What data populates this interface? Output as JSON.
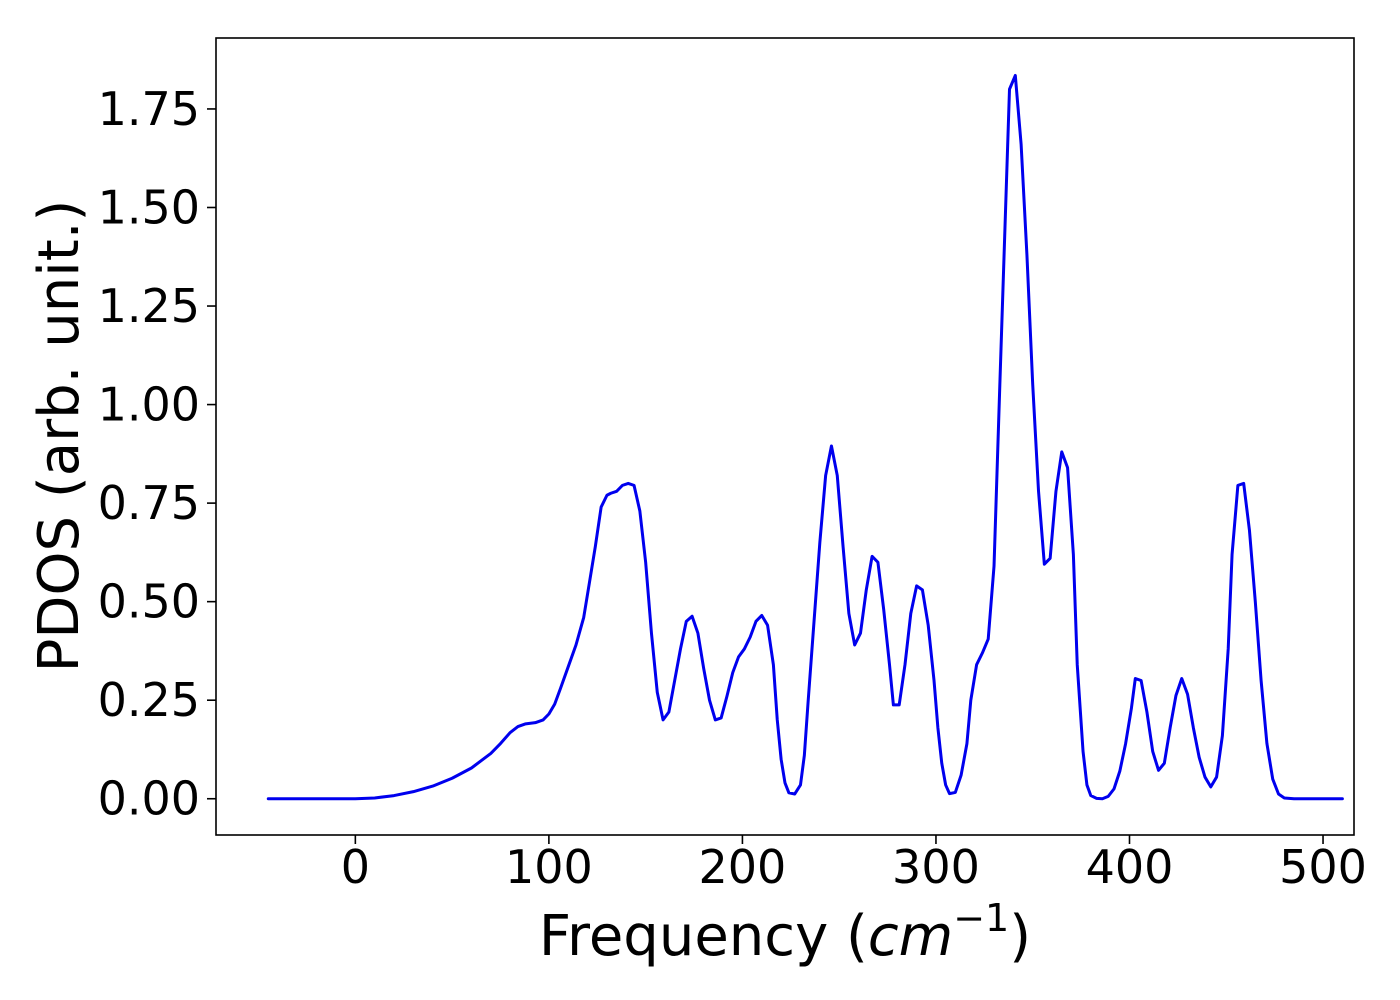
{
  "chart_data": {
    "type": "line",
    "title": "",
    "xlabel": "Frequency (",
    "xlabel_math": "cm",
    "xlabel_sup": "−1",
    "xlabel_close": ")",
    "ylabel": "PDOS (arb. unit.)",
    "xlim": [
      -72,
      516
    ],
    "ylim": [
      -0.092,
      1.93
    ],
    "grid": false,
    "legend": "none",
    "xticks": [
      0,
      100,
      200,
      300,
      400,
      500
    ],
    "xtick_labels": [
      "0",
      "100",
      "200",
      "300",
      "400",
      "500"
    ],
    "yticks": [
      0,
      0.25,
      0.5,
      0.75,
      1.0,
      1.25,
      1.5,
      1.75
    ],
    "ytick_labels": [
      "0.00",
      "0.25",
      "0.50",
      "0.75",
      "1.00",
      "1.25",
      "1.50",
      "1.75"
    ],
    "series": [
      {
        "color": "#0000ee",
        "points": [
          [
            -45,
            0.0
          ],
          [
            0,
            0.0
          ],
          [
            10,
            0.002
          ],
          [
            20,
            0.008
          ],
          [
            30,
            0.018
          ],
          [
            40,
            0.032
          ],
          [
            50,
            0.052
          ],
          [
            60,
            0.078
          ],
          [
            70,
            0.115
          ],
          [
            75,
            0.14
          ],
          [
            80,
            0.168
          ],
          [
            84,
            0.183
          ],
          [
            88,
            0.19
          ],
          [
            93,
            0.193
          ],
          [
            97,
            0.2
          ],
          [
            100,
            0.215
          ],
          [
            103,
            0.24
          ],
          [
            106,
            0.28
          ],
          [
            110,
            0.335
          ],
          [
            114,
            0.39
          ],
          [
            118,
            0.46
          ],
          [
            121,
            0.55
          ],
          [
            124,
            0.64
          ],
          [
            127,
            0.74
          ],
          [
            130,
            0.77
          ],
          [
            132,
            0.775
          ],
          [
            135,
            0.78
          ],
          [
            138,
            0.795
          ],
          [
            141,
            0.8
          ],
          [
            144,
            0.795
          ],
          [
            147,
            0.73
          ],
          [
            150,
            0.6
          ],
          [
            153,
            0.42
          ],
          [
            156,
            0.27
          ],
          [
            159,
            0.2
          ],
          [
            162,
            0.22
          ],
          [
            165,
            0.3
          ],
          [
            168,
            0.38
          ],
          [
            171,
            0.45
          ],
          [
            174,
            0.463
          ],
          [
            177,
            0.42
          ],
          [
            180,
            0.33
          ],
          [
            183,
            0.25
          ],
          [
            186,
            0.2
          ],
          [
            189,
            0.205
          ],
          [
            192,
            0.26
          ],
          [
            195,
            0.32
          ],
          [
            198,
            0.36
          ],
          [
            201,
            0.38
          ],
          [
            204,
            0.41
          ],
          [
            207,
            0.45
          ],
          [
            210,
            0.465
          ],
          [
            213,
            0.44
          ],
          [
            216,
            0.34
          ],
          [
            218,
            0.2
          ],
          [
            220,
            0.1
          ],
          [
            222,
            0.04
          ],
          [
            224,
            0.015
          ],
          [
            227,
            0.012
          ],
          [
            230,
            0.035
          ],
          [
            232,
            0.11
          ],
          [
            234,
            0.25
          ],
          [
            237,
            0.45
          ],
          [
            240,
            0.65
          ],
          [
            243,
            0.82
          ],
          [
            246,
            0.895
          ],
          [
            249,
            0.82
          ],
          [
            252,
            0.64
          ],
          [
            255,
            0.47
          ],
          [
            258,
            0.39
          ],
          [
            261,
            0.42
          ],
          [
            264,
            0.53
          ],
          [
            267,
            0.615
          ],
          [
            270,
            0.6
          ],
          [
            273,
            0.48
          ],
          [
            276,
            0.34
          ],
          [
            278,
            0.238
          ],
          [
            281,
            0.238
          ],
          [
            284,
            0.34
          ],
          [
            287,
            0.47
          ],
          [
            290,
            0.54
          ],
          [
            293,
            0.53
          ],
          [
            296,
            0.44
          ],
          [
            299,
            0.3
          ],
          [
            301,
            0.18
          ],
          [
            303,
            0.09
          ],
          [
            305,
            0.035
          ],
          [
            307,
            0.013
          ],
          [
            310,
            0.016
          ],
          [
            313,
            0.06
          ],
          [
            316,
            0.14
          ],
          [
            318,
            0.25
          ],
          [
            321,
            0.34
          ],
          [
            324,
            0.37
          ],
          [
            327,
            0.405
          ],
          [
            330,
            0.59
          ],
          [
            333,
            1.05
          ],
          [
            336,
            1.5
          ],
          [
            338,
            1.8
          ],
          [
            341,
            1.835
          ],
          [
            344,
            1.66
          ],
          [
            347,
            1.38
          ],
          [
            350,
            1.05
          ],
          [
            353,
            0.78
          ],
          [
            356,
            0.595
          ],
          [
            359,
            0.61
          ],
          [
            362,
            0.78
          ],
          [
            365,
            0.88
          ],
          [
            368,
            0.84
          ],
          [
            371,
            0.62
          ],
          [
            373,
            0.34
          ],
          [
            376,
            0.12
          ],
          [
            378,
            0.035
          ],
          [
            380,
            0.008
          ],
          [
            383,
            0.001
          ],
          [
            386,
            0.0
          ],
          [
            389,
            0.006
          ],
          [
            392,
            0.025
          ],
          [
            395,
            0.07
          ],
          [
            398,
            0.14
          ],
          [
            401,
            0.23
          ],
          [
            403,
            0.305
          ],
          [
            406,
            0.3
          ],
          [
            409,
            0.22
          ],
          [
            412,
            0.12
          ],
          [
            415,
            0.072
          ],
          [
            418,
            0.09
          ],
          [
            421,
            0.18
          ],
          [
            424,
            0.262
          ],
          [
            427,
            0.305
          ],
          [
            430,
            0.265
          ],
          [
            433,
            0.18
          ],
          [
            436,
            0.105
          ],
          [
            439,
            0.055
          ],
          [
            442,
            0.03
          ],
          [
            445,
            0.055
          ],
          [
            448,
            0.16
          ],
          [
            451,
            0.38
          ],
          [
            453,
            0.62
          ],
          [
            456,
            0.795
          ],
          [
            459,
            0.8
          ],
          [
            462,
            0.68
          ],
          [
            465,
            0.5
          ],
          [
            468,
            0.3
          ],
          [
            471,
            0.14
          ],
          [
            474,
            0.05
          ],
          [
            477,
            0.012
          ],
          [
            480,
            0.002
          ],
          [
            485,
            0.0
          ],
          [
            510,
            0.0
          ]
        ]
      }
    ]
  }
}
